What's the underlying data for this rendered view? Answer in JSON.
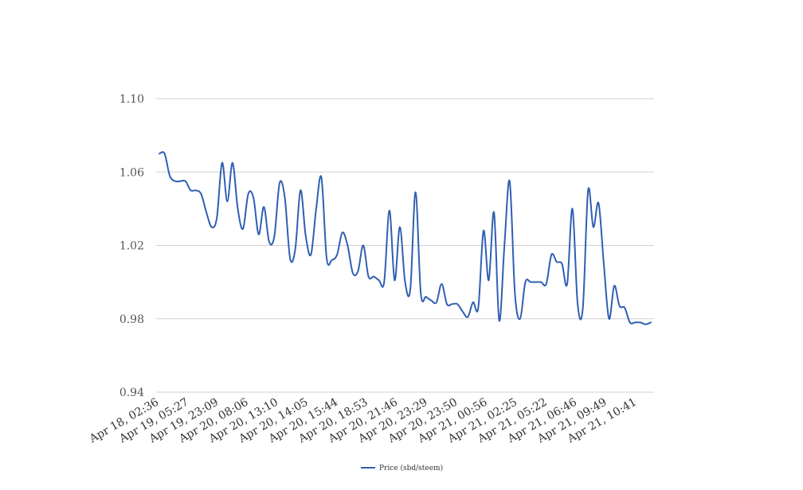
{
  "chart_data": {
    "type": "line",
    "title": "",
    "xlabel": "",
    "ylabel": "",
    "ylim": [
      0.94,
      1.1
    ],
    "yticks": [
      "0.94",
      "0.98",
      "1.02",
      "1.06",
      "1.10"
    ],
    "grid": true,
    "legend_position": "bottom-center",
    "series_color": "#2f5fb3",
    "x_tick_labels": [
      "Apr 18, 02:36",
      "Apr 19, 05:27",
      "Apr 19, 23:09",
      "Apr 20, 08:06",
      "Apr 20, 13:10",
      "Apr 20, 14:05",
      "Apr 20, 15:44",
      "Apr 20, 18:53",
      "Apr 20, 21:46",
      "Apr 20, 23:29",
      "Apr 20, 23:50",
      "Apr 21, 00:56",
      "Apr 21, 02:25",
      "Apr 21, 05:22",
      "Apr 21, 06:46",
      "Apr 21, 09:49",
      "Apr 21, 10:41"
    ],
    "series": [
      {
        "name": "Price (sbd/steem)",
        "values": [
          1.07,
          1.07,
          1.058,
          1.055,
          1.055,
          1.055,
          1.05,
          1.05,
          1.048,
          1.038,
          1.03,
          1.035,
          1.065,
          1.044,
          1.065,
          1.04,
          1.029,
          1.048,
          1.046,
          1.026,
          1.041,
          1.022,
          1.025,
          1.054,
          1.046,
          1.013,
          1.018,
          1.05,
          1.025,
          1.015,
          1.04,
          1.057,
          1.013,
          1.012,
          1.015,
          1.027,
          1.02,
          1.005,
          1.006,
          1.02,
          1.003,
          1.003,
          1.001,
          1.0,
          1.039,
          1.001,
          1.03,
          1.0,
          0.996,
          1.049,
          0.994,
          0.992,
          0.99,
          0.989,
          0.999,
          0.988,
          0.988,
          0.988,
          0.984,
          0.981,
          0.989,
          0.986,
          1.028,
          1.001,
          1.038,
          0.979,
          1.02,
          1.055,
          0.994,
          0.98,
          1.0,
          1.0,
          1.0,
          1.0,
          0.999,
          1.015,
          1.011,
          1.01,
          0.999,
          1.04,
          0.988,
          0.986,
          1.05,
          1.03,
          1.043,
          1.01,
          0.98,
          0.998,
          0.987,
          0.986,
          0.978,
          0.978,
          0.978,
          0.977,
          0.978
        ]
      }
    ]
  }
}
